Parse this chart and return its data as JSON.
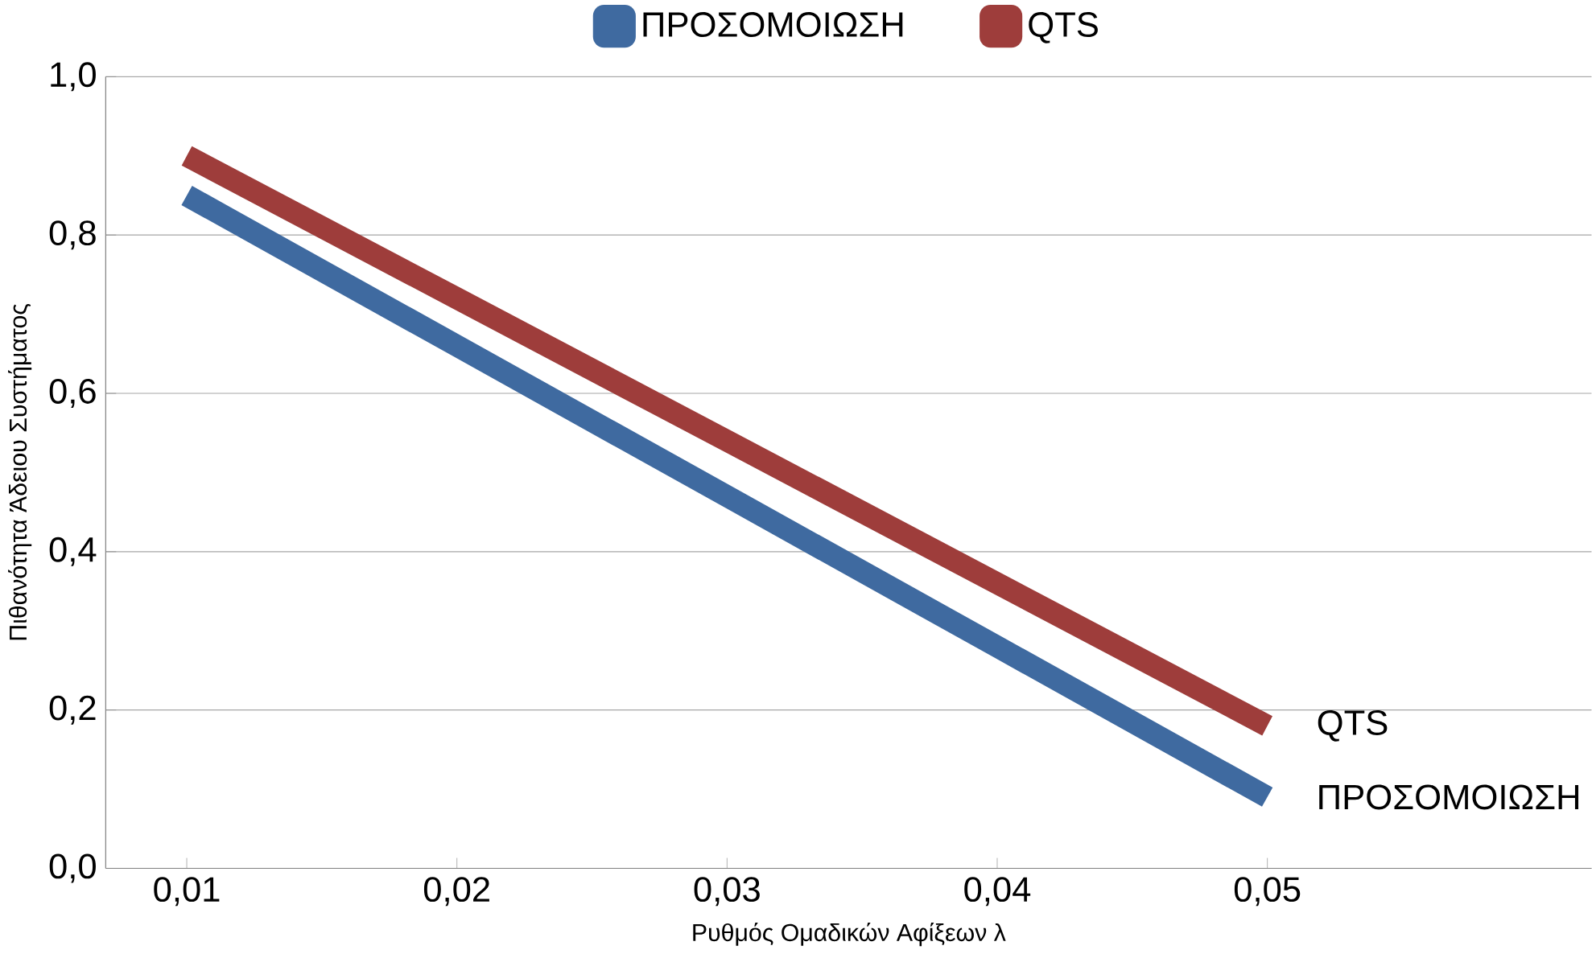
{
  "chart_data": {
    "type": "line",
    "xlabel": "Ρυθμός Ομαδικών Αφίξεων λ",
    "ylabel": "Πιθανότητα Άδειου Συστήματος",
    "categories": [
      "0,01",
      "0,02",
      "0,03",
      "0,04",
      "0,05"
    ],
    "series": [
      {
        "name": "ΠΡΟΣΟΜΟΙΩΣΗ",
        "color": "#3f6aa0",
        "values": [
          0.85,
          0.66,
          0.47,
          0.28,
          0.09
        ]
      },
      {
        "name": "QTS",
        "color": "#9e3d3b",
        "values": [
          0.9,
          0.72,
          0.54,
          0.36,
          0.18
        ]
      }
    ],
    "ylim": [
      0,
      1
    ],
    "yticks": [
      {
        "value": 0,
        "label": "0,0"
      },
      {
        "value": 0.2,
        "label": "0,2"
      },
      {
        "value": 0.4,
        "label": "0,4"
      },
      {
        "value": 0.6,
        "label": "0,6"
      },
      {
        "value": 0.8,
        "label": "0,8"
      },
      {
        "value": 1,
        "label": "1,0"
      }
    ],
    "grid": "y",
    "legend": "top",
    "marker": "none",
    "line_style": "solid"
  }
}
